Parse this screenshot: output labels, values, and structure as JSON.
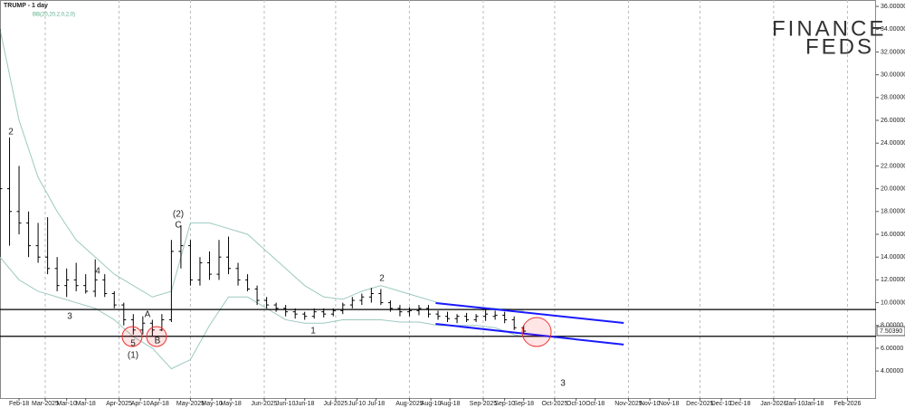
{
  "chart_data": {
    "type": "ohlc",
    "title": "TRUMP - 1 day",
    "indicator": "BB(20,20,2,0,2,0)",
    "color": "#000000",
    "x": [
      0,
      4,
      8,
      12,
      16,
      20,
      24,
      28,
      32,
      36,
      40,
      44,
      48,
      52,
      56,
      60,
      64,
      68,
      72,
      76,
      80,
      84,
      88,
      92,
      96,
      100,
      104,
      108,
      112,
      116,
      120,
      124,
      128,
      132,
      136,
      140,
      144,
      148,
      152,
      156,
      160,
      164,
      168,
      172,
      176,
      180,
      184,
      188,
      192,
      196,
      200,
      204,
      208,
      212,
      216,
      220
    ],
    "open": [
      16,
      20,
      18,
      17,
      15,
      14,
      13,
      11.5,
      12,
      11.5,
      11,
      12,
      10.8,
      9.8,
      8.5,
      7.6,
      8.2,
      7.6,
      8.5,
      14.5,
      15,
      12,
      13.5,
      12.5,
      14,
      13,
      12,
      11.2,
      10.2,
      9.8,
      9.5,
      9.2,
      9,
      8.8,
      9.2,
      9,
      9.3,
      9.8,
      10.2,
      10.5,
      10.8,
      10,
      9.5,
      9.2,
      9.3,
      9.5,
      9,
      8.8,
      8.6,
      8.8,
      8.5,
      8.8,
      8.8,
      8.9,
      8.5,
      7.8
    ],
    "high": [
      34,
      24.5,
      22,
      18,
      17,
      17.5,
      14,
      13,
      13.5,
      12.5,
      13.8,
      12.5,
      11,
      10,
      9,
      8.8,
      8.5,
      9,
      15.5,
      16.8,
      15.5,
      14,
      14.5,
      15.5,
      15.8,
      13.5,
      12.5,
      11.5,
      10.5,
      10,
      9.8,
      9.5,
      9.2,
      9.5,
      9.5,
      9.5,
      10,
      10.5,
      10.8,
      11.3,
      11.2,
      10.2,
      9.8,
      9.6,
      9.8,
      9.8,
      9.3,
      9.2,
      9,
      9.1,
      9,
      9.4,
      9.3,
      9.2,
      8.8,
      8
    ],
    "low": [
      14,
      15,
      16,
      14,
      13.5,
      12.5,
      11,
      10.5,
      11,
      10.8,
      10.5,
      10.5,
      9.5,
      8,
      7.2,
      7.2,
      7.1,
      7.5,
      8.3,
      13,
      11.5,
      11.5,
      12,
      12,
      12.5,
      11.5,
      11,
      9.8,
      9.5,
      9.2,
      8.8,
      8.6,
      8.5,
      8.6,
      8.7,
      8.8,
      9,
      9.5,
      9.8,
      10,
      9.8,
      9.2,
      8.8,
      8.8,
      8.9,
      8.7,
      8.5,
      8.3,
      8.2,
      8.3,
      8.3,
      8.4,
      8.5,
      8.2,
      7.6,
      7.3
    ],
    "close": [
      20,
      18,
      17,
      15,
      14,
      13,
      11.5,
      12,
      11.5,
      11,
      12,
      10.8,
      9.8,
      8.5,
      7.6,
      8.2,
      7.6,
      8.5,
      14.5,
      15,
      12,
      13.5,
      12.5,
      14,
      13,
      12,
      11.2,
      10.2,
      9.8,
      9.5,
      9.2,
      9,
      8.8,
      9.2,
      9,
      9.3,
      9.8,
      10.2,
      10.5,
      10.8,
      10,
      9.5,
      9.2,
      9.3,
      9.5,
      9,
      8.8,
      8.6,
      8.8,
      8.5,
      8.8,
      9,
      8.9,
      8.5,
      7.8,
      7.5
    ],
    "bands": {
      "color": "#9cc9c0",
      "x": [
        0,
        8,
        16,
        24,
        32,
        40,
        48,
        56,
        64,
        72,
        80,
        88,
        96,
        104,
        112,
        120,
        128,
        136,
        144,
        152,
        160,
        168,
        176,
        184,
        192,
        200,
        208,
        216,
        220
      ],
      "upper": [
        34,
        26,
        21,
        18,
        15.5,
        14,
        12.5,
        11.5,
        10.5,
        11,
        17,
        17,
        16.5,
        16,
        14.5,
        13,
        11.5,
        10.5,
        10.3,
        11,
        11.5,
        11,
        10.5,
        10,
        9.8,
        9.6,
        9.5,
        9.4,
        9.3
      ],
      "lower": [
        14,
        12,
        11,
        10.5,
        10,
        9.5,
        8.5,
        7,
        6,
        4.2,
        5,
        8,
        10.5,
        10.5,
        9.5,
        8.5,
        8.2,
        8.2,
        8.5,
        8.5,
        8.5,
        8.3,
        8.3,
        8,
        8,
        8,
        7.8,
        7.2,
        7
      ]
    },
    "levels": {
      "color": "#000000",
      "values": [
        9.4,
        7.05
      ]
    },
    "channel_color": "#1a1aff",
    "channels": [
      {
        "x": [
          183,
          262
        ],
        "y": [
          9.97,
          8.22
        ]
      },
      {
        "x": [
          183,
          262
        ],
        "y": [
          8.14,
          6.32
        ]
      }
    ],
    "xlim": [
      0,
      368
    ],
    "ylim": [
      1.63,
      36.56
    ],
    "grid": true,
    "xticks": [
      {
        "value": 19,
        "label": "Mar-2025"
      },
      {
        "value": 50,
        "label": "Apr-2025"
      },
      {
        "value": 80,
        "label": "May-2025"
      },
      {
        "value": 111,
        "label": "Jun-2025"
      },
      {
        "value": 141,
        "label": "Jul-2025"
      },
      {
        "value": 172,
        "label": "Aug-2025"
      },
      {
        "value": 203,
        "label": "Sep-2025"
      },
      {
        "value": 233,
        "label": "Oct-2025"
      },
      {
        "value": 264,
        "label": "Nov-2025"
      },
      {
        "value": 294,
        "label": "Dec-2025"
      },
      {
        "value": 325,
        "label": "Jan-2026"
      },
      {
        "value": 356,
        "label": "Feb-2026"
      }
    ],
    "xticks_minor": [
      {
        "value": 8,
        "label": "Feb-18"
      },
      {
        "value": 28,
        "label": "Mar-10"
      },
      {
        "value": 36,
        "label": "Mar-18"
      },
      {
        "value": 59,
        "label": "Apr-10"
      },
      {
        "value": 67,
        "label": "Apr-18"
      },
      {
        "value": 89,
        "label": "May-10"
      },
      {
        "value": 97,
        "label": "May-18"
      },
      {
        "value": 120,
        "label": "Jun-10"
      },
      {
        "value": 128,
        "label": "Jun-18"
      },
      {
        "value": 150,
        "label": "Jul-10"
      },
      {
        "value": 158,
        "label": "Jul-18"
      },
      {
        "value": 181,
        "label": "Aug-10"
      },
      {
        "value": 189,
        "label": "Aug-18"
      },
      {
        "value": 212,
        "label": "Sep-10"
      },
      {
        "value": 220,
        "label": "Sep-18"
      },
      {
        "value": 242,
        "label": "Oct-10"
      },
      {
        "value": 250,
        "label": "Oct-18"
      },
      {
        "value": 273,
        "label": "Nov-10"
      },
      {
        "value": 281,
        "label": "Nov-18"
      },
      {
        "value": 303,
        "label": "Dec-10"
      },
      {
        "value": 311,
        "label": "Dec-18"
      },
      {
        "value": 334,
        "label": "Jan-10"
      },
      {
        "value": 342,
        "label": "Jan-18"
      }
    ],
    "yticks": [
      {
        "value": 4,
        "label": "4.00000"
      },
      {
        "value": 6,
        "label": "6.00000"
      },
      {
        "value": 8,
        "label": "8.00000"
      },
      {
        "value": 10,
        "label": "10.00000"
      },
      {
        "value": 12,
        "label": "12.00000"
      },
      {
        "value": 14,
        "label": "14.00000"
      },
      {
        "value": 16,
        "label": "16.00000"
      },
      {
        "value": 18,
        "label": "18.00000"
      },
      {
        "value": 20,
        "label": "20.00000"
      },
      {
        "value": 22,
        "label": "22.00000"
      },
      {
        "value": 24,
        "label": "24.00000"
      },
      {
        "value": 26,
        "label": "26.00000"
      },
      {
        "value": 28,
        "label": "28.00000"
      },
      {
        "value": 30,
        "label": "30.00000"
      },
      {
        "value": 32,
        "label": "32.00000"
      },
      {
        "value": 34,
        "label": "34.00000"
      },
      {
        "value": 36,
        "label": "36.00000"
      }
    ],
    "last_price": {
      "value": 7.5039,
      "label": "7.50390"
    },
    "annotations": [
      "2",
      "3",
      "4",
      "5",
      "(1)",
      "A",
      "B",
      "(2)",
      "C",
      "1",
      "2",
      "3"
    ],
    "logo": [
      "FINANCE",
      "FEDS"
    ]
  }
}
